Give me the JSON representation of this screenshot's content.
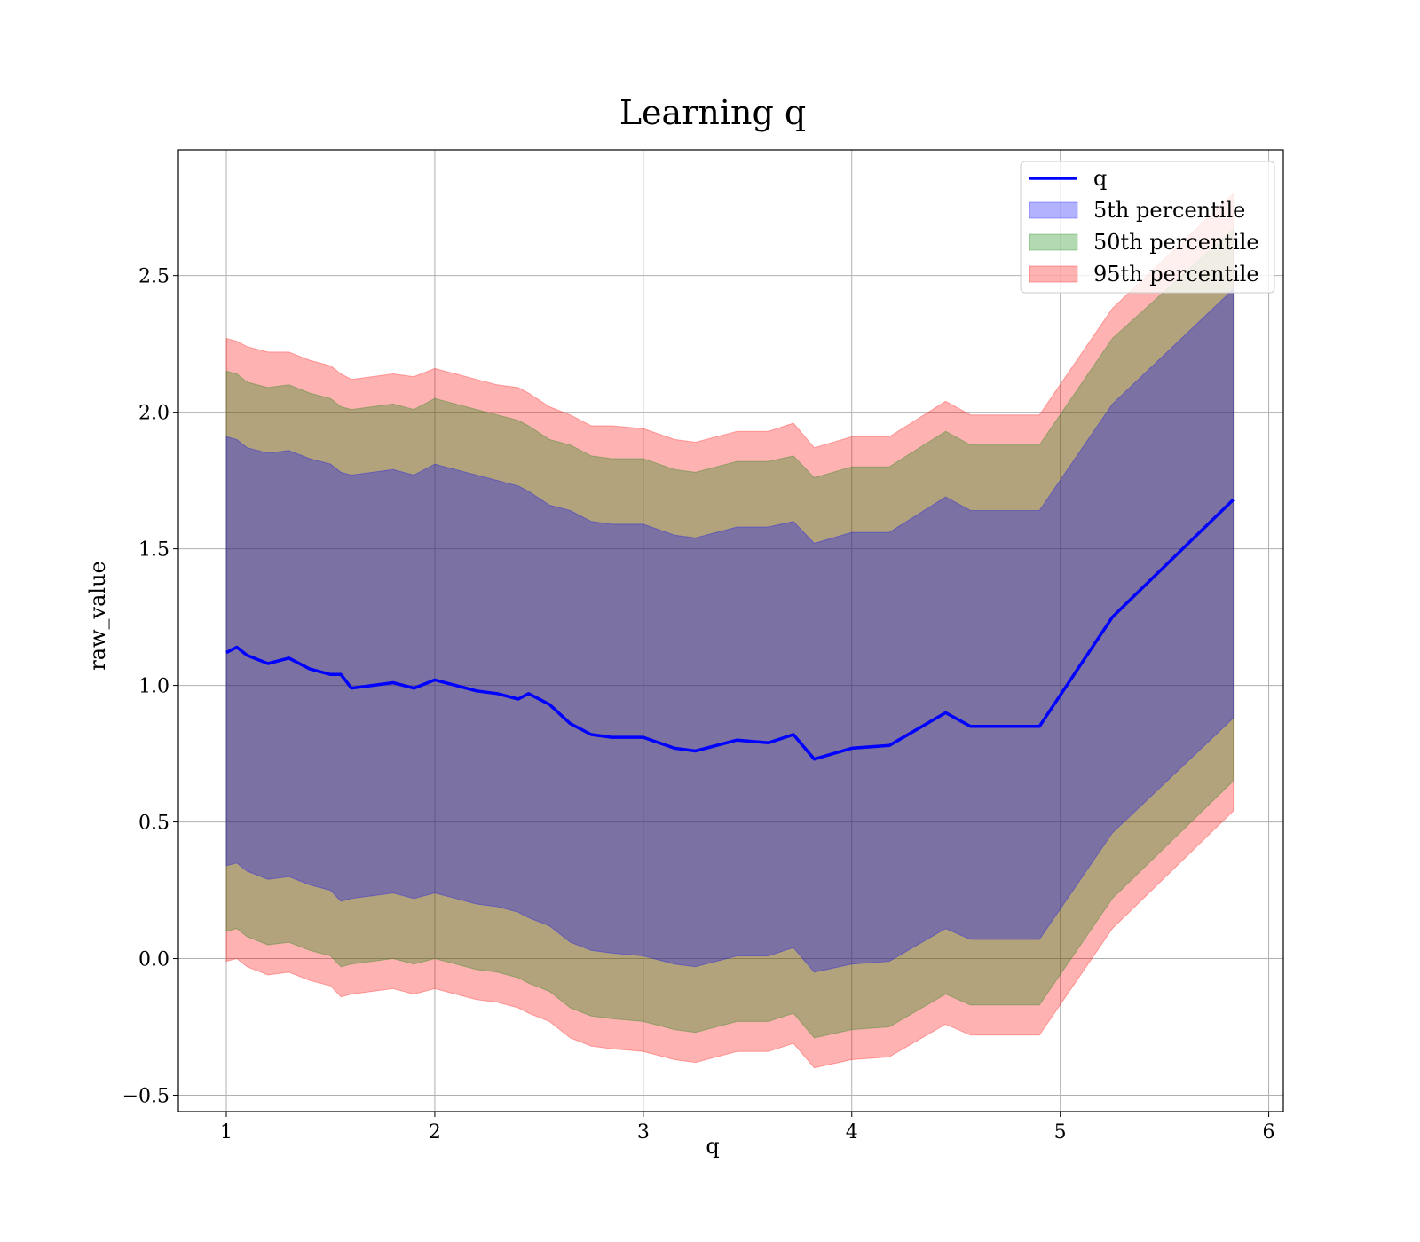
{
  "chart_data": {
    "type": "area",
    "title": "Learning q",
    "xlabel": "q",
    "ylabel": "raw_value",
    "xlim": [
      0.77,
      6.07
    ],
    "ylim": [
      -0.56,
      2.96
    ],
    "xticks": [
      1,
      2,
      3,
      4,
      5,
      6
    ],
    "xtick_labels": [
      "1",
      "2",
      "3",
      "4",
      "5",
      "6"
    ],
    "yticks": [
      -0.5,
      0.0,
      0.5,
      1.0,
      1.5,
      2.0,
      2.5
    ],
    "ytick_labels": [
      "−0.5",
      "0.0",
      "0.5",
      "1.0",
      "1.5",
      "2.0",
      "2.5"
    ],
    "grid": true,
    "legend_position": "top-right",
    "legend": [
      {
        "label": "q",
        "kind": "line",
        "color": "#0000ff"
      },
      {
        "label": "5th percentile",
        "kind": "patch",
        "color": "#0000ff"
      },
      {
        "label": "50th percentile",
        "kind": "patch",
        "color": "#008000"
      },
      {
        "label": "95th percentile",
        "kind": "patch",
        "color": "#ff0000"
      }
    ],
    "x": [
      1.0,
      1.05,
      1.1,
      1.2,
      1.3,
      1.4,
      1.5,
      1.55,
      1.6,
      1.7,
      1.8,
      1.9,
      2.0,
      2.1,
      2.2,
      2.3,
      2.4,
      2.45,
      2.55,
      2.65,
      2.75,
      2.85,
      3.0,
      3.15,
      3.25,
      3.45,
      3.6,
      3.72,
      3.82,
      4.0,
      4.18,
      4.45,
      4.57,
      4.9,
      5.25,
      5.83
    ],
    "series": [
      {
        "name": "q",
        "color": "#0000ff",
        "y": [
          1.12,
          1.14,
          1.11,
          1.08,
          1.1,
          1.06,
          1.04,
          1.04,
          0.99,
          1.0,
          1.01,
          0.99,
          1.02,
          1.0,
          0.98,
          0.97,
          0.95,
          0.97,
          0.93,
          0.86,
          0.82,
          0.81,
          0.81,
          0.77,
          0.76,
          0.8,
          0.79,
          0.82,
          0.73,
          0.77,
          0.78,
          0.9,
          0.85,
          0.85,
          1.25,
          1.68
        ]
      }
    ],
    "bands": [
      {
        "name": "95th percentile",
        "color": "#ff0000",
        "opacity": 0.3,
        "upper": [
          2.27,
          2.26,
          2.24,
          2.22,
          2.22,
          2.19,
          2.17,
          2.14,
          2.12,
          2.13,
          2.14,
          2.13,
          2.16,
          2.14,
          2.12,
          2.1,
          2.09,
          2.07,
          2.02,
          1.99,
          1.95,
          1.95,
          1.94,
          1.9,
          1.89,
          1.93,
          1.93,
          1.96,
          1.87,
          1.91,
          1.91,
          2.04,
          1.99,
          1.99,
          2.38,
          2.8
        ],
        "lower": [
          -0.01,
          0.0,
          -0.03,
          -0.06,
          -0.05,
          -0.08,
          -0.1,
          -0.14,
          -0.13,
          -0.12,
          -0.11,
          -0.13,
          -0.11,
          -0.13,
          -0.15,
          -0.16,
          -0.18,
          -0.2,
          -0.23,
          -0.29,
          -0.32,
          -0.33,
          -0.34,
          -0.37,
          -0.38,
          -0.34,
          -0.34,
          -0.31,
          -0.4,
          -0.37,
          -0.36,
          -0.24,
          -0.28,
          -0.28,
          0.11,
          0.54
        ]
      },
      {
        "name": "50th percentile",
        "color": "#008000",
        "opacity": 0.3,
        "upper": [
          2.15,
          2.14,
          2.11,
          2.09,
          2.1,
          2.07,
          2.05,
          2.02,
          2.01,
          2.02,
          2.03,
          2.01,
          2.05,
          2.03,
          2.01,
          1.99,
          1.97,
          1.95,
          1.9,
          1.88,
          1.84,
          1.83,
          1.83,
          1.79,
          1.78,
          1.82,
          1.82,
          1.84,
          1.76,
          1.8,
          1.8,
          1.93,
          1.88,
          1.88,
          2.27,
          2.67
        ],
        "lower": [
          0.1,
          0.11,
          0.08,
          0.05,
          0.06,
          0.03,
          0.01,
          -0.03,
          -0.02,
          -0.01,
          0.0,
          -0.02,
          0.0,
          -0.02,
          -0.04,
          -0.05,
          -0.07,
          -0.09,
          -0.12,
          -0.18,
          -0.21,
          -0.22,
          -0.23,
          -0.26,
          -0.27,
          -0.23,
          -0.23,
          -0.2,
          -0.29,
          -0.26,
          -0.25,
          -0.13,
          -0.17,
          -0.17,
          0.22,
          0.65
        ]
      },
      {
        "name": "5th percentile",
        "color": "#0000ff",
        "opacity": 0.3,
        "upper": [
          1.91,
          1.9,
          1.87,
          1.85,
          1.86,
          1.83,
          1.81,
          1.78,
          1.77,
          1.78,
          1.79,
          1.77,
          1.81,
          1.79,
          1.77,
          1.75,
          1.73,
          1.71,
          1.66,
          1.64,
          1.6,
          1.59,
          1.59,
          1.55,
          1.54,
          1.58,
          1.58,
          1.6,
          1.52,
          1.56,
          1.56,
          1.69,
          1.64,
          1.64,
          2.03,
          2.45
        ],
        "lower": [
          0.34,
          0.35,
          0.32,
          0.29,
          0.3,
          0.27,
          0.25,
          0.21,
          0.22,
          0.23,
          0.24,
          0.22,
          0.24,
          0.22,
          0.2,
          0.19,
          0.17,
          0.15,
          0.12,
          0.06,
          0.03,
          0.02,
          0.01,
          -0.02,
          -0.03,
          0.01,
          0.01,
          0.04,
          -0.05,
          -0.02,
          -0.01,
          0.11,
          0.07,
          0.07,
          0.46,
          0.88
        ]
      }
    ]
  }
}
